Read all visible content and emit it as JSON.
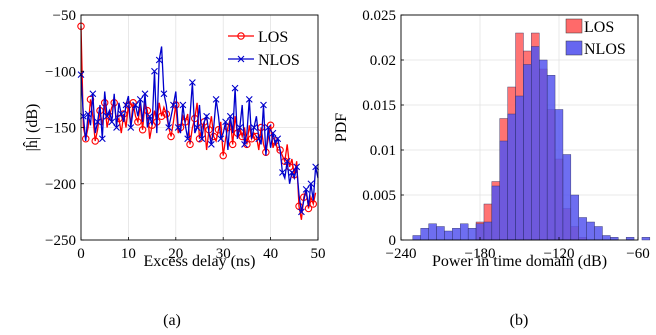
{
  "chart_data": [
    {
      "type": "line",
      "panel_label": "(a)",
      "xlabel": "Excess delay (ns)",
      "ylabel": "|ĥ| (dB)",
      "xlim": [
        0,
        50
      ],
      "ylim": [
        -250,
        -50
      ],
      "xticks": [
        0,
        10,
        20,
        30,
        40,
        50
      ],
      "yticks": [
        -50,
        -100,
        -150,
        -200,
        -250
      ],
      "grid": true,
      "legend_position": "top-right",
      "series": [
        {
          "name": "LOS",
          "color": "#ff0000",
          "marker": "circle",
          "x": [
            0,
            0.5,
            1,
            1.5,
            2,
            2.5,
            3,
            3.5,
            4,
            4.5,
            5,
            5.5,
            6,
            6.5,
            7,
            7.5,
            8,
            8.5,
            9,
            9.5,
            10,
            10.5,
            11,
            11.5,
            12,
            12.5,
            13,
            13.5,
            14,
            14.5,
            15,
            15.5,
            16,
            16.5,
            17,
            17.5,
            18,
            18.5,
            19,
            19.5,
            20,
            20.5,
            21,
            21.5,
            22,
            22.5,
            23,
            23.5,
            24,
            24.5,
            25,
            25.5,
            26,
            26.5,
            27,
            27.5,
            28,
            28.5,
            29,
            29.5,
            30,
            30.5,
            31,
            31.5,
            32,
            32.5,
            33,
            33.5,
            34,
            34.5,
            35,
            35.5,
            36,
            36.5,
            37,
            37.5,
            38,
            38.5,
            39,
            39.5,
            40,
            40.5,
            41,
            41.5,
            42,
            42.5,
            43,
            43.5,
            44,
            44.5,
            45,
            45.5,
            46,
            46.5,
            47,
            47.5,
            48,
            48.5,
            49,
            49.5
          ],
          "y": [
            -60,
            -150,
            -160,
            -150,
            -125,
            -140,
            -162,
            -152,
            -135,
            -148,
            -128,
            -150,
            -140,
            -132,
            -128,
            -145,
            -142,
            -155,
            -138,
            -150,
            -130,
            -148,
            -128,
            -140,
            -145,
            -130,
            -152,
            -128,
            -135,
            -160,
            -148,
            -135,
            -145,
            -128,
            -140,
            -132,
            -138,
            -150,
            -158,
            -145,
            -130,
            -155,
            -150,
            -140,
            -145,
            -138,
            -165,
            -150,
            -142,
            -128,
            -160,
            -150,
            -145,
            -170,
            -152,
            -140,
            -158,
            -162,
            -152,
            -145,
            -175,
            -160,
            -150,
            -142,
            -165,
            -140,
            -155,
            -150,
            -158,
            -150,
            -165,
            -148,
            -160,
            -155,
            -158,
            -170,
            -150,
            -165,
            -172,
            -160,
            -148,
            -168,
            -162,
            -170,
            -170,
            -175,
            -180,
            -165,
            -185,
            -178,
            -192,
            -180,
            -220,
            -232,
            -212,
            -205,
            -222,
            -212,
            -218,
            -208
          ]
        },
        {
          "name": "NLOS",
          "color": "#0000cc",
          "marker": "x",
          "x": [
            0,
            0.5,
            1,
            1.5,
            2,
            2.5,
            3,
            3.5,
            4,
            4.5,
            5,
            5.5,
            6,
            6.5,
            7,
            7.5,
            8,
            8.5,
            9,
            9.5,
            10,
            10.5,
            11,
            11.5,
            12,
            12.5,
            13,
            13.5,
            14,
            14.5,
            15,
            15.5,
            16,
            16.5,
            17,
            17.5,
            18,
            18.5,
            19,
            19.5,
            20,
            20.5,
            21,
            21.5,
            22,
            22.5,
            23,
            23.5,
            24,
            24.5,
            25,
            25.5,
            26,
            26.5,
            27,
            27.5,
            28,
            28.5,
            29,
            29.5,
            30,
            30.5,
            31,
            31.5,
            32,
            32.5,
            33,
            33.5,
            34,
            34.5,
            35,
            35.5,
            36,
            36.5,
            37,
            37.5,
            38,
            38.5,
            39,
            39.5,
            40,
            40.5,
            41,
            41.5,
            42,
            42.5,
            43,
            43.5,
            44,
            44.5,
            45,
            45.5,
            46,
            46.5,
            47,
            47.5,
            48,
            48.5,
            49,
            49.5,
            50
          ],
          "y": [
            -103,
            -140,
            -162,
            -138,
            -148,
            -120,
            -155,
            -145,
            -130,
            -160,
            -118,
            -140,
            -135,
            -145,
            -120,
            -150,
            -128,
            -138,
            -145,
            -130,
            -122,
            -150,
            -135,
            -130,
            -140,
            -125,
            -145,
            -120,
            -150,
            -140,
            -148,
            -100,
            -155,
            -90,
            -78,
            -120,
            -130,
            -150,
            -140,
            -130,
            -118,
            -150,
            -155,
            -130,
            -148,
            -160,
            -140,
            -110,
            -155,
            -150,
            -130,
            -160,
            -145,
            -140,
            -155,
            -165,
            -150,
            -125,
            -140,
            -160,
            -155,
            -145,
            -170,
            -140,
            -155,
            -115,
            -160,
            -150,
            -130,
            -165,
            -155,
            -125,
            -160,
            -150,
            -140,
            -160,
            -165,
            -130,
            -175,
            -150,
            -168,
            -155,
            -165,
            -160,
            -170,
            -190,
            -195,
            -180,
            -200,
            -190,
            -195,
            -185,
            -210,
            -225,
            -215,
            -205,
            -220,
            -200,
            -215,
            -185,
            -195
          ]
        }
      ]
    },
    {
      "type": "bar",
      "panel_label": "(b)",
      "xlabel": "Power in time domain (dB)",
      "ylabel": "PDF",
      "xlim": [
        -240,
        -60
      ],
      "ylim": [
        0,
        0.025
      ],
      "xticks": [
        -240,
        -180,
        -120,
        -60
      ],
      "yticks": [
        0,
        0.005,
        0.01,
        0.015,
        0.02,
        0.025
      ],
      "ytick_labels": [
        "0",
        "0.005",
        "0.01",
        "0.015",
        "0.02",
        "0.025"
      ],
      "grid": true,
      "legend_position": "top-right",
      "bin_width": 6,
      "bin_start": -231,
      "series": [
        {
          "name": "LOS",
          "color": "#ff5a5a",
          "values": [
            0.0,
            0.0,
            0.0,
            0.0,
            0.0,
            0.0,
            0.0,
            0.0,
            0.002,
            0.004,
            0.0065,
            0.0135,
            0.017,
            0.023,
            0.021,
            0.023,
            0.019,
            0.0145,
            0.009,
            0.0035,
            0.0015,
            0.0003,
            0.0,
            0.0,
            0.0,
            0.0,
            0.0,
            0.0,
            0.0,
            0.0
          ]
        },
        {
          "name": "NLOS",
          "color": "#5555ee",
          "values": [
            0.0005,
            0.0013,
            0.0018,
            0.0015,
            0.001,
            0.0013,
            0.0018,
            0.0013,
            0.0018,
            0.002,
            0.006,
            0.011,
            0.014,
            0.016,
            0.0195,
            0.0215,
            0.02,
            0.0183,
            0.0145,
            0.0095,
            0.005,
            0.0025,
            0.002,
            0.0015,
            0.0005,
            0.0003,
            0.0,
            0.0003,
            0.0,
            0.0003
          ]
        }
      ]
    }
  ]
}
